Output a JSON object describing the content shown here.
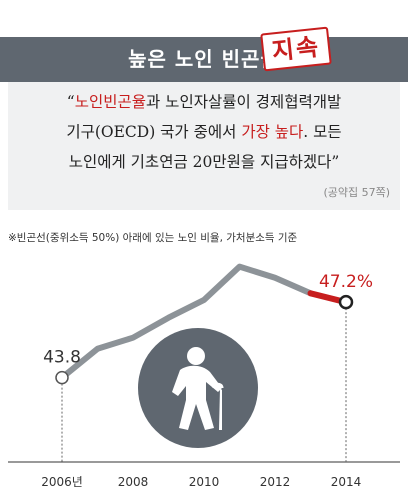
{
  "header": {
    "title": "높은 노인 빈곤율",
    "stamp": "지속"
  },
  "quote": {
    "line1_open": "“",
    "line1_highlight": "노인빈곤율",
    "line1_rest": "과 노인자살률이 경제협력개발",
    "line2_start": "기구(OECD) 국가 중에서 ",
    "line2_highlight": "가장 높다",
    "line2_end": ". 모든",
    "line3": "노인에게 기초연금 20만원을 지급하겠다”",
    "source": "(공약집 57쪽)"
  },
  "note": "※빈곤선(중위소득 50%) 아래에 있는 노인 비율, 가처분소득 기준",
  "colors": {
    "header_bg": "#5f6770",
    "accent_red": "#c71e1e",
    "line_gray": "#8d9398",
    "quote_bg": "#f0f1f2"
  },
  "icon": "elderly-person-with-cane-icon",
  "chart_data": {
    "type": "line",
    "x": [
      2006,
      2007,
      2008,
      2009,
      2010,
      2011,
      2012,
      2013,
      2014
    ],
    "x_tick_values": [
      2006,
      2008,
      2010,
      2012,
      2014
    ],
    "x_tick_labels": [
      "2006년",
      "2008",
      "2010",
      "2012",
      "2014"
    ],
    "series": [
      {
        "values": [
          43.8,
          45.1,
          45.6,
          46.5,
          47.3,
          48.8,
          48.3,
          47.6,
          47.2
        ]
      }
    ],
    "labeled_points": [
      {
        "x": 2006,
        "label": "43.8"
      },
      {
        "x": 2014,
        "label": "47.2%"
      }
    ],
    "highlight_segment": [
      2013,
      2014
    ],
    "ylim": [
      40,
      50
    ],
    "grid": false,
    "title": "",
    "xlabel": "",
    "ylabel": ""
  }
}
